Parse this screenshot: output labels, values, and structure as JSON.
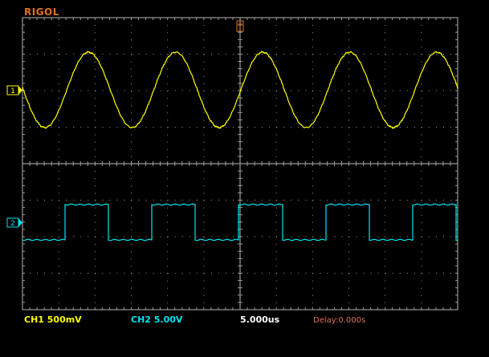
{
  "brand": "RIGOL",
  "status_bar": {
    "ch1": "CH1  500mV",
    "ch2": "CH2  5.00V",
    "timebase": "5.000us",
    "delay": "Delay:0.000s"
  },
  "markers": {
    "ch1_label": "1",
    "ch2_label": "2",
    "trigger_label": "T"
  },
  "colors": {
    "ch1": "#ffff00",
    "ch2": "#00e5ee",
    "grid": "#9a9a9a",
    "brand": "#e07020",
    "delay": "#e07060",
    "trigger": "#e07020"
  },
  "traces": {
    "ch1_cycles": 5,
    "ch2_cycles": 5
  }
}
